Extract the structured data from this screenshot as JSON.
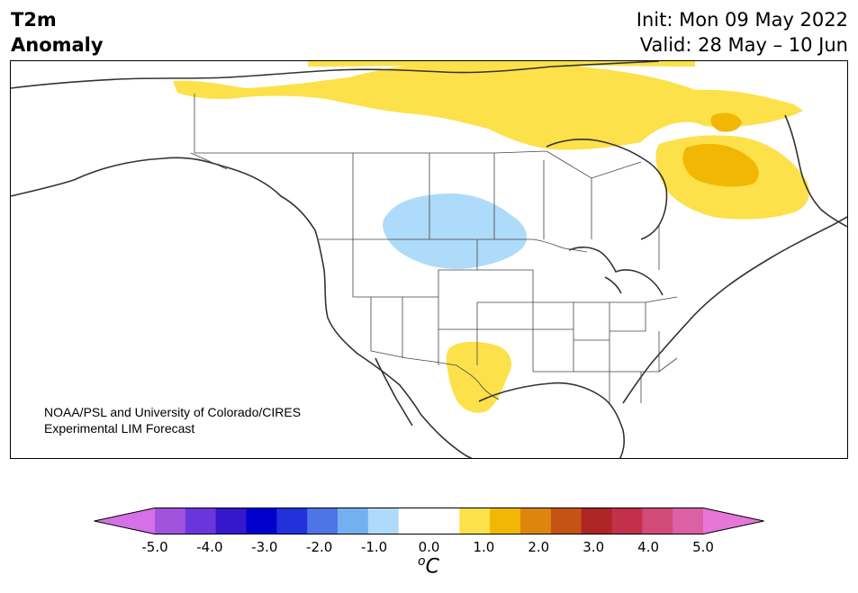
{
  "header": {
    "title_line1": "T2m",
    "title_line2": "Anomaly",
    "init": "Init: Mon 09 May 2022",
    "valid": "Valid: 28 May – 10 Jun"
  },
  "map": {
    "credit_line1": "NOAA/PSL and University of Colorado/CIRES",
    "credit_line2": "Experimental LIM Forecast",
    "region": "North America",
    "anomaly_regions": [
      {
        "area": "Northern Canada / Arctic Archipelago",
        "range": "0.5 to 1.0",
        "color": "#fde14a"
      },
      {
        "area": "Northern Quebec / Labrador",
        "range": "0.5 to 1.0",
        "color": "#fde14a"
      },
      {
        "area": "Northern Quebec core",
        "range": "1.0 to 1.5",
        "color": "#f2b705"
      },
      {
        "area": "Southern Prairies / Northern Plains",
        "range": "-1.0 to -0.5",
        "color": "#aedbfa"
      },
      {
        "area": "New Mexico / West Texas",
        "range": "0.5 to 1.0",
        "color": "#fde14a"
      }
    ]
  },
  "colorbar": {
    "colors": [
      "#d670e8",
      "#a053dd",
      "#6a36dc",
      "#3517cc",
      "#0000cc",
      "#2231d9",
      "#4d74e4",
      "#74b0f0",
      "#aedbfa",
      "#ffffff",
      "#ffffff",
      "#fde14a",
      "#f2b705",
      "#dd860f",
      "#c55313",
      "#ad2525",
      "#c23049",
      "#d24a78",
      "#db60a4",
      "#e676d8"
    ],
    "ticks": [
      "-5.0",
      "-4.0",
      "-3.0",
      "-2.0",
      "-1.0",
      "0.0",
      "1.0",
      "2.0",
      "3.0",
      "4.0",
      "5.0"
    ],
    "unit_base": "C",
    "unit_sup": "o"
  }
}
